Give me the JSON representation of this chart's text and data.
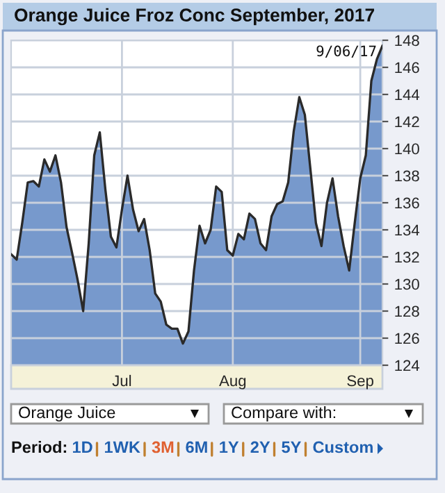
{
  "chart_data": {
    "type": "area",
    "title": "Orange Juice Froz Conc September, 2017",
    "categories": [
      null,
      null,
      null,
      null,
      null,
      null,
      null,
      null,
      null,
      null,
      null,
      null,
      null,
      null,
      null,
      null,
      null,
      null,
      null,
      null,
      "Jul",
      null,
      null,
      null,
      null,
      null,
      null,
      null,
      null,
      null,
      null,
      null,
      null,
      null,
      null,
      null,
      null,
      null,
      null,
      null,
      "Aug",
      null,
      null,
      null,
      null,
      null,
      null,
      null,
      null,
      null,
      null,
      null,
      null,
      null,
      null,
      null,
      null,
      null,
      null,
      null,
      null,
      null,
      null,
      "Sep",
      null,
      null,
      null,
      null
    ],
    "series": [
      {
        "color": "#7799cc",
        "values": [
          132.2,
          131.8,
          134.5,
          137.5,
          137.6,
          137.2,
          139.2,
          138.3,
          139.5,
          137.5,
          134.2,
          132.3,
          130.3,
          128.0,
          133.0,
          139.5,
          141.2,
          137.0,
          133.5,
          132.7,
          135.5,
          138.0,
          135.5,
          133.9,
          134.8,
          132.5,
          129.3,
          128.7,
          127.0,
          126.7,
          126.7,
          125.6,
          126.5,
          131.0,
          134.3,
          133.0,
          134.0,
          137.2,
          136.8,
          132.5,
          132.1,
          133.7,
          133.3,
          135.2,
          134.8,
          133.0,
          132.5,
          135.0,
          135.9,
          136.1,
          137.5,
          141.3,
          143.8,
          142.5,
          138.5,
          134.5,
          132.8,
          136.0,
          137.8,
          135.0,
          132.8,
          131.0,
          134.5,
          137.8,
          139.5,
          145.0,
          146.6,
          147.6
        ]
      }
    ],
    "ylim": [
      124,
      148
    ],
    "yticks": [
      124,
      126,
      128,
      130,
      132,
      134,
      136,
      138,
      140,
      142,
      144,
      146,
      148
    ],
    "grid": true,
    "legend": false,
    "annotations": [
      "9/06/17",
      "Orange Juice",
      "Compare with:",
      "Period:",
      "1D",
      "1WK",
      "3M",
      "6M",
      "1Y",
      "2Y",
      "5Y",
      "Custom"
    ]
  }
}
